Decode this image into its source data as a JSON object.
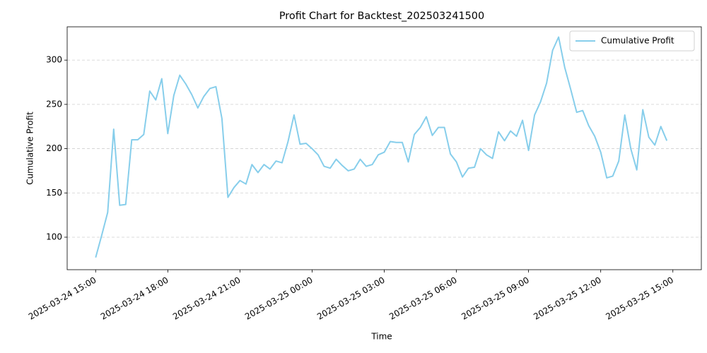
{
  "chart_data": {
    "type": "line",
    "title": "Profit Chart for Backtest_202503241500",
    "x_label": "Time",
    "y_label": "Cumulative Profit",
    "x": [
      "2025-03-24 15:00",
      "2025-03-24 15:15",
      "2025-03-24 15:30",
      "2025-03-24 15:45",
      "2025-03-24 16:00",
      "2025-03-24 16:15",
      "2025-03-24 16:30",
      "2025-03-24 16:45",
      "2025-03-24 17:00",
      "2025-03-24 17:15",
      "2025-03-24 17:30",
      "2025-03-24 17:45",
      "2025-03-24 18:00",
      "2025-03-24 18:15",
      "2025-03-24 18:30",
      "2025-03-24 18:45",
      "2025-03-24 19:00",
      "2025-03-24 19:15",
      "2025-03-24 19:30",
      "2025-03-24 19:45",
      "2025-03-24 20:00",
      "2025-03-24 20:15",
      "2025-03-24 20:30",
      "2025-03-24 20:45",
      "2025-03-24 21:00",
      "2025-03-24 21:15",
      "2025-03-24 21:30",
      "2025-03-24 21:45",
      "2025-03-24 22:00",
      "2025-03-24 22:15",
      "2025-03-24 22:30",
      "2025-03-24 22:45",
      "2025-03-24 23:00",
      "2025-03-24 23:15",
      "2025-03-24 23:30",
      "2025-03-24 23:45",
      "2025-03-25 00:00",
      "2025-03-25 00:15",
      "2025-03-25 00:30",
      "2025-03-25 00:45",
      "2025-03-25 01:00",
      "2025-03-25 01:15",
      "2025-03-25 01:30",
      "2025-03-25 01:45",
      "2025-03-25 02:00",
      "2025-03-25 02:15",
      "2025-03-25 02:30",
      "2025-03-25 02:45",
      "2025-03-25 03:00",
      "2025-03-25 03:15",
      "2025-03-25 03:30",
      "2025-03-25 03:45",
      "2025-03-25 04:00",
      "2025-03-25 04:15",
      "2025-03-25 04:30",
      "2025-03-25 04:45",
      "2025-03-25 05:00",
      "2025-03-25 05:15",
      "2025-03-25 05:30",
      "2025-03-25 05:45",
      "2025-03-25 06:00",
      "2025-03-25 06:15",
      "2025-03-25 06:30",
      "2025-03-25 06:45",
      "2025-03-25 07:00",
      "2025-03-25 07:15",
      "2025-03-25 07:30",
      "2025-03-25 07:45",
      "2025-03-25 08:00",
      "2025-03-25 08:15",
      "2025-03-25 08:30",
      "2025-03-25 08:45",
      "2025-03-25 09:00",
      "2025-03-25 09:15",
      "2025-03-25 09:30",
      "2025-03-25 09:45",
      "2025-03-25 10:00",
      "2025-03-25 10:15",
      "2025-03-25 10:30",
      "2025-03-25 10:45",
      "2025-03-25 11:00",
      "2025-03-25 11:15",
      "2025-03-25 11:30",
      "2025-03-25 11:45",
      "2025-03-25 12:00",
      "2025-03-25 12:15",
      "2025-03-25 12:30",
      "2025-03-25 12:45",
      "2025-03-25 13:00",
      "2025-03-25 13:15",
      "2025-03-25 13:30",
      "2025-03-25 13:45",
      "2025-03-25 14:00",
      "2025-03-25 14:15",
      "2025-03-25 14:30",
      "2025-03-25 14:45"
    ],
    "series": [
      {
        "name": "Cumulative Profit",
        "color": "#87ceeb",
        "values": [
          77,
          102,
          128,
          222,
          136,
          137,
          210,
          210,
          216,
          265,
          255,
          279,
          217,
          260,
          283,
          273,
          261,
          246,
          259,
          268,
          270,
          234,
          145,
          156,
          164,
          160,
          182,
          173,
          182,
          177,
          186,
          184,
          208,
          238,
          205,
          206,
          200,
          193,
          180,
          178,
          188,
          181,
          175,
          177,
          188,
          180,
          182,
          193,
          196,
          208,
          207,
          207,
          185,
          216,
          224,
          236,
          215,
          224,
          224,
          194,
          185,
          168,
          178,
          179,
          200,
          193,
          189,
          219,
          209,
          220,
          214,
          232,
          198,
          238,
          253,
          274,
          311,
          326,
          292,
          267,
          241,
          243,
          226,
          214,
          196,
          167,
          169,
          186,
          238,
          200,
          176,
          244,
          213,
          204,
          225,
          209
        ]
      }
    ],
    "xlim": [
      "2025-03-24 13:49",
      "2025-03-25 16:11"
    ],
    "xticks": [
      "2025-03-24 15:00",
      "2025-03-24 18:00",
      "2025-03-24 21:00",
      "2025-03-25 00:00",
      "2025-03-25 03:00",
      "2025-03-25 06:00",
      "2025-03-25 09:00",
      "2025-03-25 12:00",
      "2025-03-25 15:00"
    ],
    "ylim": [
      63.3,
      337.6
    ],
    "yticks": [
      100,
      150,
      200,
      250,
      300
    ],
    "grid": "y",
    "legend": "upper right"
  }
}
